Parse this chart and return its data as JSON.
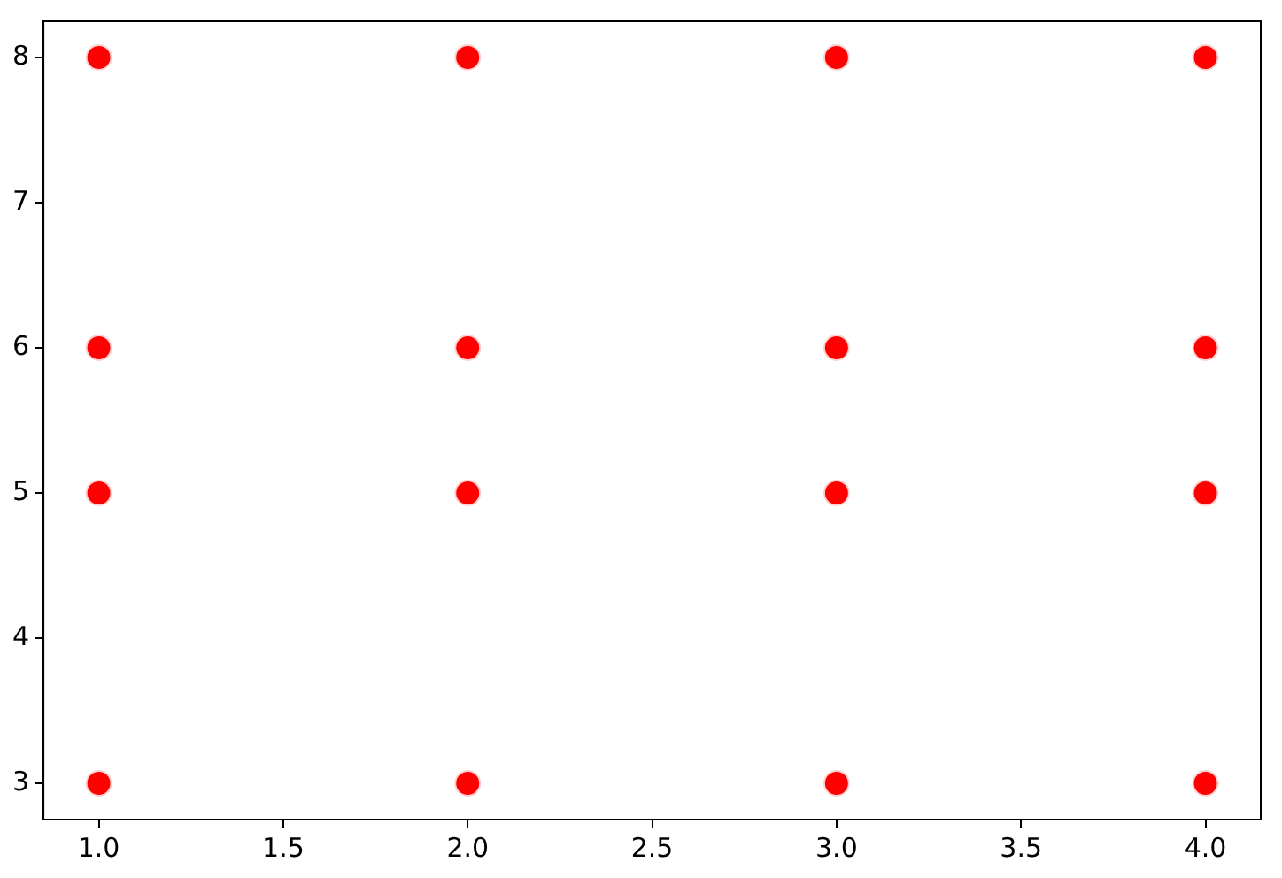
{
  "chart_data": {
    "type": "scatter",
    "series": [
      {
        "color": "#ff0000",
        "x": [
          1,
          2,
          3,
          4,
          1,
          2,
          3,
          4,
          1,
          2,
          3,
          4,
          1,
          2,
          3,
          4
        ],
        "values": [
          8,
          8,
          8,
          8,
          6,
          6,
          6,
          6,
          5,
          5,
          5,
          5,
          3,
          3,
          3,
          3
        ]
      }
    ],
    "xlim": [
      0.85,
      4.15
    ],
    "ylim": [
      2.75,
      8.25
    ],
    "xticks": [
      {
        "value": 1,
        "label": "1.0"
      },
      {
        "value": 1.5,
        "label": "1.5"
      },
      {
        "value": 2,
        "label": "2.0"
      },
      {
        "value": 2.5,
        "label": "2.5"
      },
      {
        "value": 3,
        "label": "3.0"
      },
      {
        "value": 3.5,
        "label": "3.5"
      },
      {
        "value": 4,
        "label": "4.0"
      }
    ],
    "yticks": [
      3,
      4,
      5,
      6,
      7,
      8
    ],
    "marker": "circle",
    "grid": false,
    "legend": false
  }
}
